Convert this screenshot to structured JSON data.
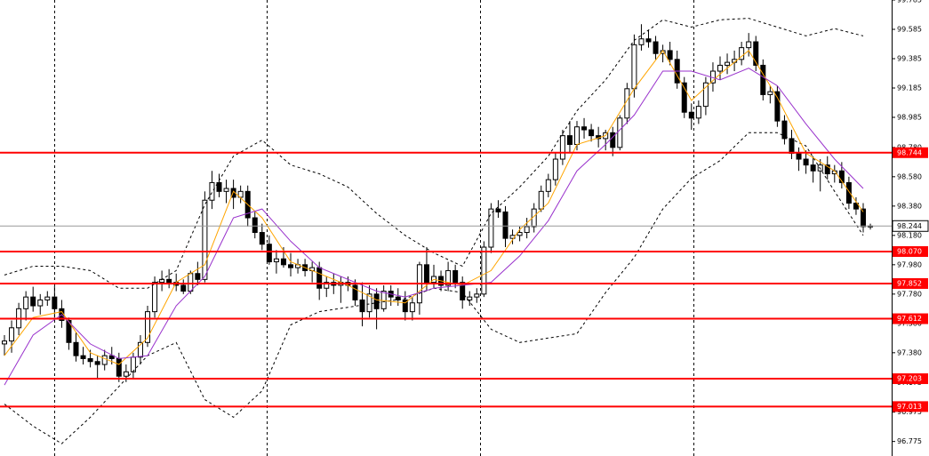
{
  "chart_data": {
    "type": "candlestick",
    "ylim": [
      96.676,
      99.785
    ],
    "yticks": [
      99.785,
      99.585,
      99.385,
      99.185,
      98.985,
      {
        "value": 98.78,
        "label": "98.780"
      },
      {
        "value": 98.58,
        "label": "98.580"
      },
      {
        "value": 98.38,
        "label": "98.380"
      },
      {
        "value": 98.18,
        "label": "98.180"
      },
      {
        "value": 97.98,
        "label": "97.980"
      },
      {
        "value": 97.78,
        "label": "97.780"
      },
      {
        "value": 97.58,
        "label": "97.580"
      },
      {
        "value": 97.38,
        "label": "97.380"
      },
      97.175,
      96.975,
      96.775
    ],
    "open": [
      97.44,
      97.46,
      97.55,
      97.68,
      97.76,
      97.7,
      97.74,
      97.76,
      97.68,
      97.6,
      97.45,
      97.36,
      97.34,
      97.32,
      97.3,
      97.36,
      97.34,
      97.22,
      97.25,
      97.35,
      97.45,
      97.66,
      97.86,
      97.88,
      97.86,
      97.84,
      97.8,
      97.92,
      97.88,
      98.42,
      98.54,
      98.48,
      98.5,
      98.44,
      98.48,
      98.3,
      98.2,
      98.12,
      98.0,
      98.02,
      97.98,
      97.96,
      97.98,
      97.94,
      97.96,
      97.82,
      97.86,
      97.84,
      97.86,
      97.84,
      97.74,
      97.66,
      97.78,
      97.68,
      97.8,
      97.76,
      97.74,
      97.66,
      97.72,
      97.98,
      97.86,
      97.9,
      97.84,
      97.94,
      97.86,
      97.74,
      97.76,
      97.78,
      98.1,
      98.36,
      98.34,
      98.16,
      98.18,
      98.2,
      98.24,
      98.36,
      98.48,
      98.56,
      98.7,
      98.86,
      98.8,
      98.92,
      98.9,
      98.86,
      98.84,
      98.88,
      98.78,
      98.98,
      99.18,
      99.48,
      99.52,
      99.5,
      99.42,
      99.44,
      99.38,
      99.22,
      99.02,
      98.98,
      99.06,
      99.22,
      99.3,
      99.34,
      99.36,
      99.38,
      99.46,
      99.5,
      99.34,
      99.14,
      99.16,
      98.96,
      98.84,
      98.74,
      98.7,
      98.66,
      98.62,
      98.66,
      98.6,
      98.62,
      98.54,
      98.4,
      98.36,
      98.24
    ],
    "high": [
      97.5,
      97.6,
      97.72,
      97.8,
      97.83,
      97.78,
      97.8,
      97.84,
      97.74,
      97.62,
      97.52,
      97.42,
      97.4,
      97.36,
      97.4,
      97.42,
      97.38,
      97.3,
      97.38,
      97.5,
      97.7,
      97.9,
      97.94,
      97.95,
      97.92,
      97.88,
      97.94,
      98.0,
      98.48,
      98.62,
      98.6,
      98.56,
      98.56,
      98.52,
      98.52,
      98.34,
      98.26,
      98.18,
      98.08,
      98.1,
      98.06,
      98.02,
      98.02,
      98.0,
      98.0,
      97.9,
      97.92,
      97.9,
      97.9,
      97.88,
      97.86,
      97.84,
      97.82,
      97.84,
      97.84,
      97.82,
      97.8,
      97.76,
      98.0,
      98.1,
      97.98,
      97.94,
      98.0,
      97.98,
      97.9,
      97.8,
      97.82,
      98.14,
      98.4,
      98.42,
      98.38,
      98.22,
      98.24,
      98.3,
      98.4,
      98.52,
      98.6,
      98.74,
      98.9,
      98.96,
      98.96,
      98.98,
      98.94,
      98.92,
      98.9,
      98.92,
      99.0,
      99.22,
      99.55,
      99.62,
      99.58,
      99.54,
      99.48,
      99.5,
      99.44,
      99.26,
      99.08,
      99.1,
      99.26,
      99.36,
      99.4,
      99.42,
      99.44,
      99.5,
      99.56,
      99.54,
      99.38,
      99.2,
      99.2,
      99.0,
      98.9,
      98.78,
      98.76,
      98.72,
      98.7,
      98.72,
      98.66,
      98.68,
      98.58,
      98.44,
      98.4,
      98.26
    ],
    "low": [
      97.36,
      97.38,
      97.5,
      97.6,
      97.66,
      97.64,
      97.7,
      97.62,
      97.55,
      97.4,
      97.32,
      97.3,
      97.28,
      97.2,
      97.26,
      97.3,
      97.18,
      97.18,
      97.2,
      97.3,
      97.42,
      97.62,
      97.8,
      97.82,
      97.8,
      97.78,
      97.78,
      97.84,
      97.86,
      98.36,
      98.44,
      98.4,
      98.36,
      98.4,
      98.24,
      98.16,
      98.08,
      97.98,
      97.92,
      97.96,
      97.9,
      97.92,
      97.9,
      97.86,
      97.74,
      97.76,
      97.78,
      97.72,
      97.8,
      97.7,
      97.56,
      97.62,
      97.54,
      97.66,
      97.7,
      97.7,
      97.6,
      97.6,
      97.64,
      97.8,
      97.82,
      97.8,
      97.8,
      97.82,
      97.68,
      97.7,
      97.72,
      97.76,
      98.06,
      98.3,
      98.1,
      98.12,
      98.14,
      98.16,
      98.2,
      98.34,
      98.44,
      98.52,
      98.66,
      98.74,
      98.76,
      98.84,
      98.82,
      98.78,
      98.76,
      98.72,
      98.76,
      98.94,
      99.12,
      99.44,
      99.46,
      99.38,
      99.36,
      99.34,
      99.18,
      98.98,
      98.9,
      98.94,
      99.0,
      99.16,
      99.24,
      99.28,
      99.3,
      99.34,
      99.4,
      99.3,
      99.1,
      99.08,
      98.92,
      98.8,
      98.7,
      98.62,
      98.6,
      98.54,
      98.48,
      98.56,
      98.54,
      98.5,
      98.36,
      98.32,
      98.2,
      98.22
    ],
    "close": [
      97.46,
      97.55,
      97.68,
      97.76,
      97.7,
      97.74,
      97.76,
      97.68,
      97.6,
      97.45,
      97.36,
      97.34,
      97.32,
      97.3,
      97.36,
      97.34,
      97.22,
      97.25,
      97.35,
      97.45,
      97.66,
      97.86,
      97.88,
      97.86,
      97.84,
      97.8,
      97.92,
      97.88,
      98.42,
      98.54,
      98.48,
      98.5,
      98.44,
      98.48,
      98.3,
      98.2,
      98.12,
      98.0,
      98.02,
      97.98,
      97.96,
      97.98,
      97.94,
      97.96,
      97.82,
      97.86,
      97.84,
      97.86,
      97.84,
      97.74,
      97.66,
      97.78,
      97.68,
      97.8,
      97.76,
      97.74,
      97.66,
      97.72,
      97.98,
      97.86,
      97.9,
      97.84,
      97.94,
      97.86,
      97.74,
      97.76,
      97.78,
      98.1,
      98.36,
      98.34,
      98.16,
      98.18,
      98.2,
      98.24,
      98.36,
      98.48,
      98.56,
      98.7,
      98.86,
      98.8,
      98.92,
      98.9,
      98.86,
      98.84,
      98.88,
      98.78,
      98.98,
      99.18,
      99.48,
      99.52,
      99.5,
      99.42,
      99.44,
      99.38,
      99.22,
      99.02,
      98.98,
      99.06,
      99.22,
      99.3,
      99.34,
      99.36,
      99.38,
      99.46,
      99.5,
      99.34,
      99.14,
      99.16,
      98.96,
      98.84,
      98.74,
      98.7,
      98.66,
      98.62,
      98.66,
      98.6,
      98.62,
      98.54,
      98.4,
      98.36,
      98.24,
      98.244
    ],
    "indicators": [
      {
        "color": "#000000",
        "dashed": true,
        "x": [
          0,
          4,
          8,
          12,
          16,
          20,
          24,
          28,
          32,
          36,
          40,
          44,
          48,
          52,
          56,
          60,
          64,
          68,
          72,
          76,
          80,
          84,
          88,
          92,
          96,
          100,
          104,
          108,
          112,
          116,
          120
        ],
        "values": [
          97.91,
          97.97,
          97.97,
          97.94,
          97.82,
          97.82,
          97.94,
          98.39,
          98.72,
          98.83,
          98.66,
          98.6,
          98.51,
          98.33,
          98.18,
          98.06,
          97.97,
          98.33,
          98.51,
          98.72,
          99.03,
          99.24,
          99.51,
          99.65,
          99.6,
          99.65,
          99.66,
          99.6,
          99.54,
          99.59,
          99.54
        ]
      },
      {
        "color": "#000000",
        "dashed": true,
        "x": [
          0,
          4,
          8,
          12,
          16,
          20,
          24,
          28,
          32,
          36,
          40,
          44,
          48,
          52,
          56,
          60,
          64,
          68,
          72,
          76,
          80,
          84,
          88,
          92,
          96,
          100,
          104,
          108,
          112,
          116,
          120
        ],
        "values": [
          97.03,
          96.88,
          96.76,
          96.94,
          97.15,
          97.36,
          97.45,
          97.06,
          96.94,
          97.12,
          97.57,
          97.66,
          97.69,
          97.72,
          97.75,
          97.82,
          97.79,
          97.54,
          97.45,
          97.48,
          97.51,
          97.79,
          98.03,
          98.36,
          98.57,
          98.69,
          98.88,
          98.88,
          98.79,
          98.48,
          98.18
        ]
      },
      {
        "color": "#ffa500",
        "dashed": false,
        "x": [
          0,
          4,
          8,
          12,
          16,
          20,
          24,
          28,
          32,
          36,
          40,
          44,
          48,
          52,
          56,
          60,
          64,
          68,
          72,
          76,
          80,
          84,
          88,
          92,
          96,
          100,
          104,
          108,
          112,
          116,
          120
        ],
        "values": [
          97.36,
          97.62,
          97.66,
          97.38,
          97.3,
          97.48,
          97.86,
          97.98,
          98.48,
          98.3,
          98.0,
          97.92,
          97.84,
          97.74,
          97.72,
          97.88,
          97.84,
          97.94,
          98.22,
          98.4,
          98.8,
          98.86,
          99.18,
          99.44,
          99.1,
          99.28,
          99.44,
          99.12,
          98.74,
          98.62,
          98.34
        ]
      },
      {
        "color": "#9932cc",
        "dashed": false,
        "x": [
          0,
          4,
          8,
          12,
          16,
          20,
          24,
          28,
          32,
          36,
          40,
          44,
          48,
          52,
          56,
          60,
          64,
          68,
          72,
          76,
          80,
          84,
          88,
          92,
          96,
          100,
          104,
          108,
          112,
          116,
          120
        ],
        "values": [
          97.16,
          97.5,
          97.64,
          97.44,
          97.34,
          97.36,
          97.7,
          97.9,
          98.3,
          98.36,
          98.14,
          97.96,
          97.88,
          97.8,
          97.76,
          97.82,
          97.84,
          97.86,
          98.04,
          98.28,
          98.62,
          98.8,
          99.0,
          99.3,
          99.3,
          99.24,
          99.32,
          99.2,
          98.94,
          98.7,
          98.5
        ]
      }
    ],
    "levels": [
      98.744,
      {
        "value": 98.07,
        "label": "98.070"
      },
      97.852,
      97.612,
      97.203,
      97.013
    ],
    "level_color": "#ff0000",
    "current_price": 98.244
  }
}
